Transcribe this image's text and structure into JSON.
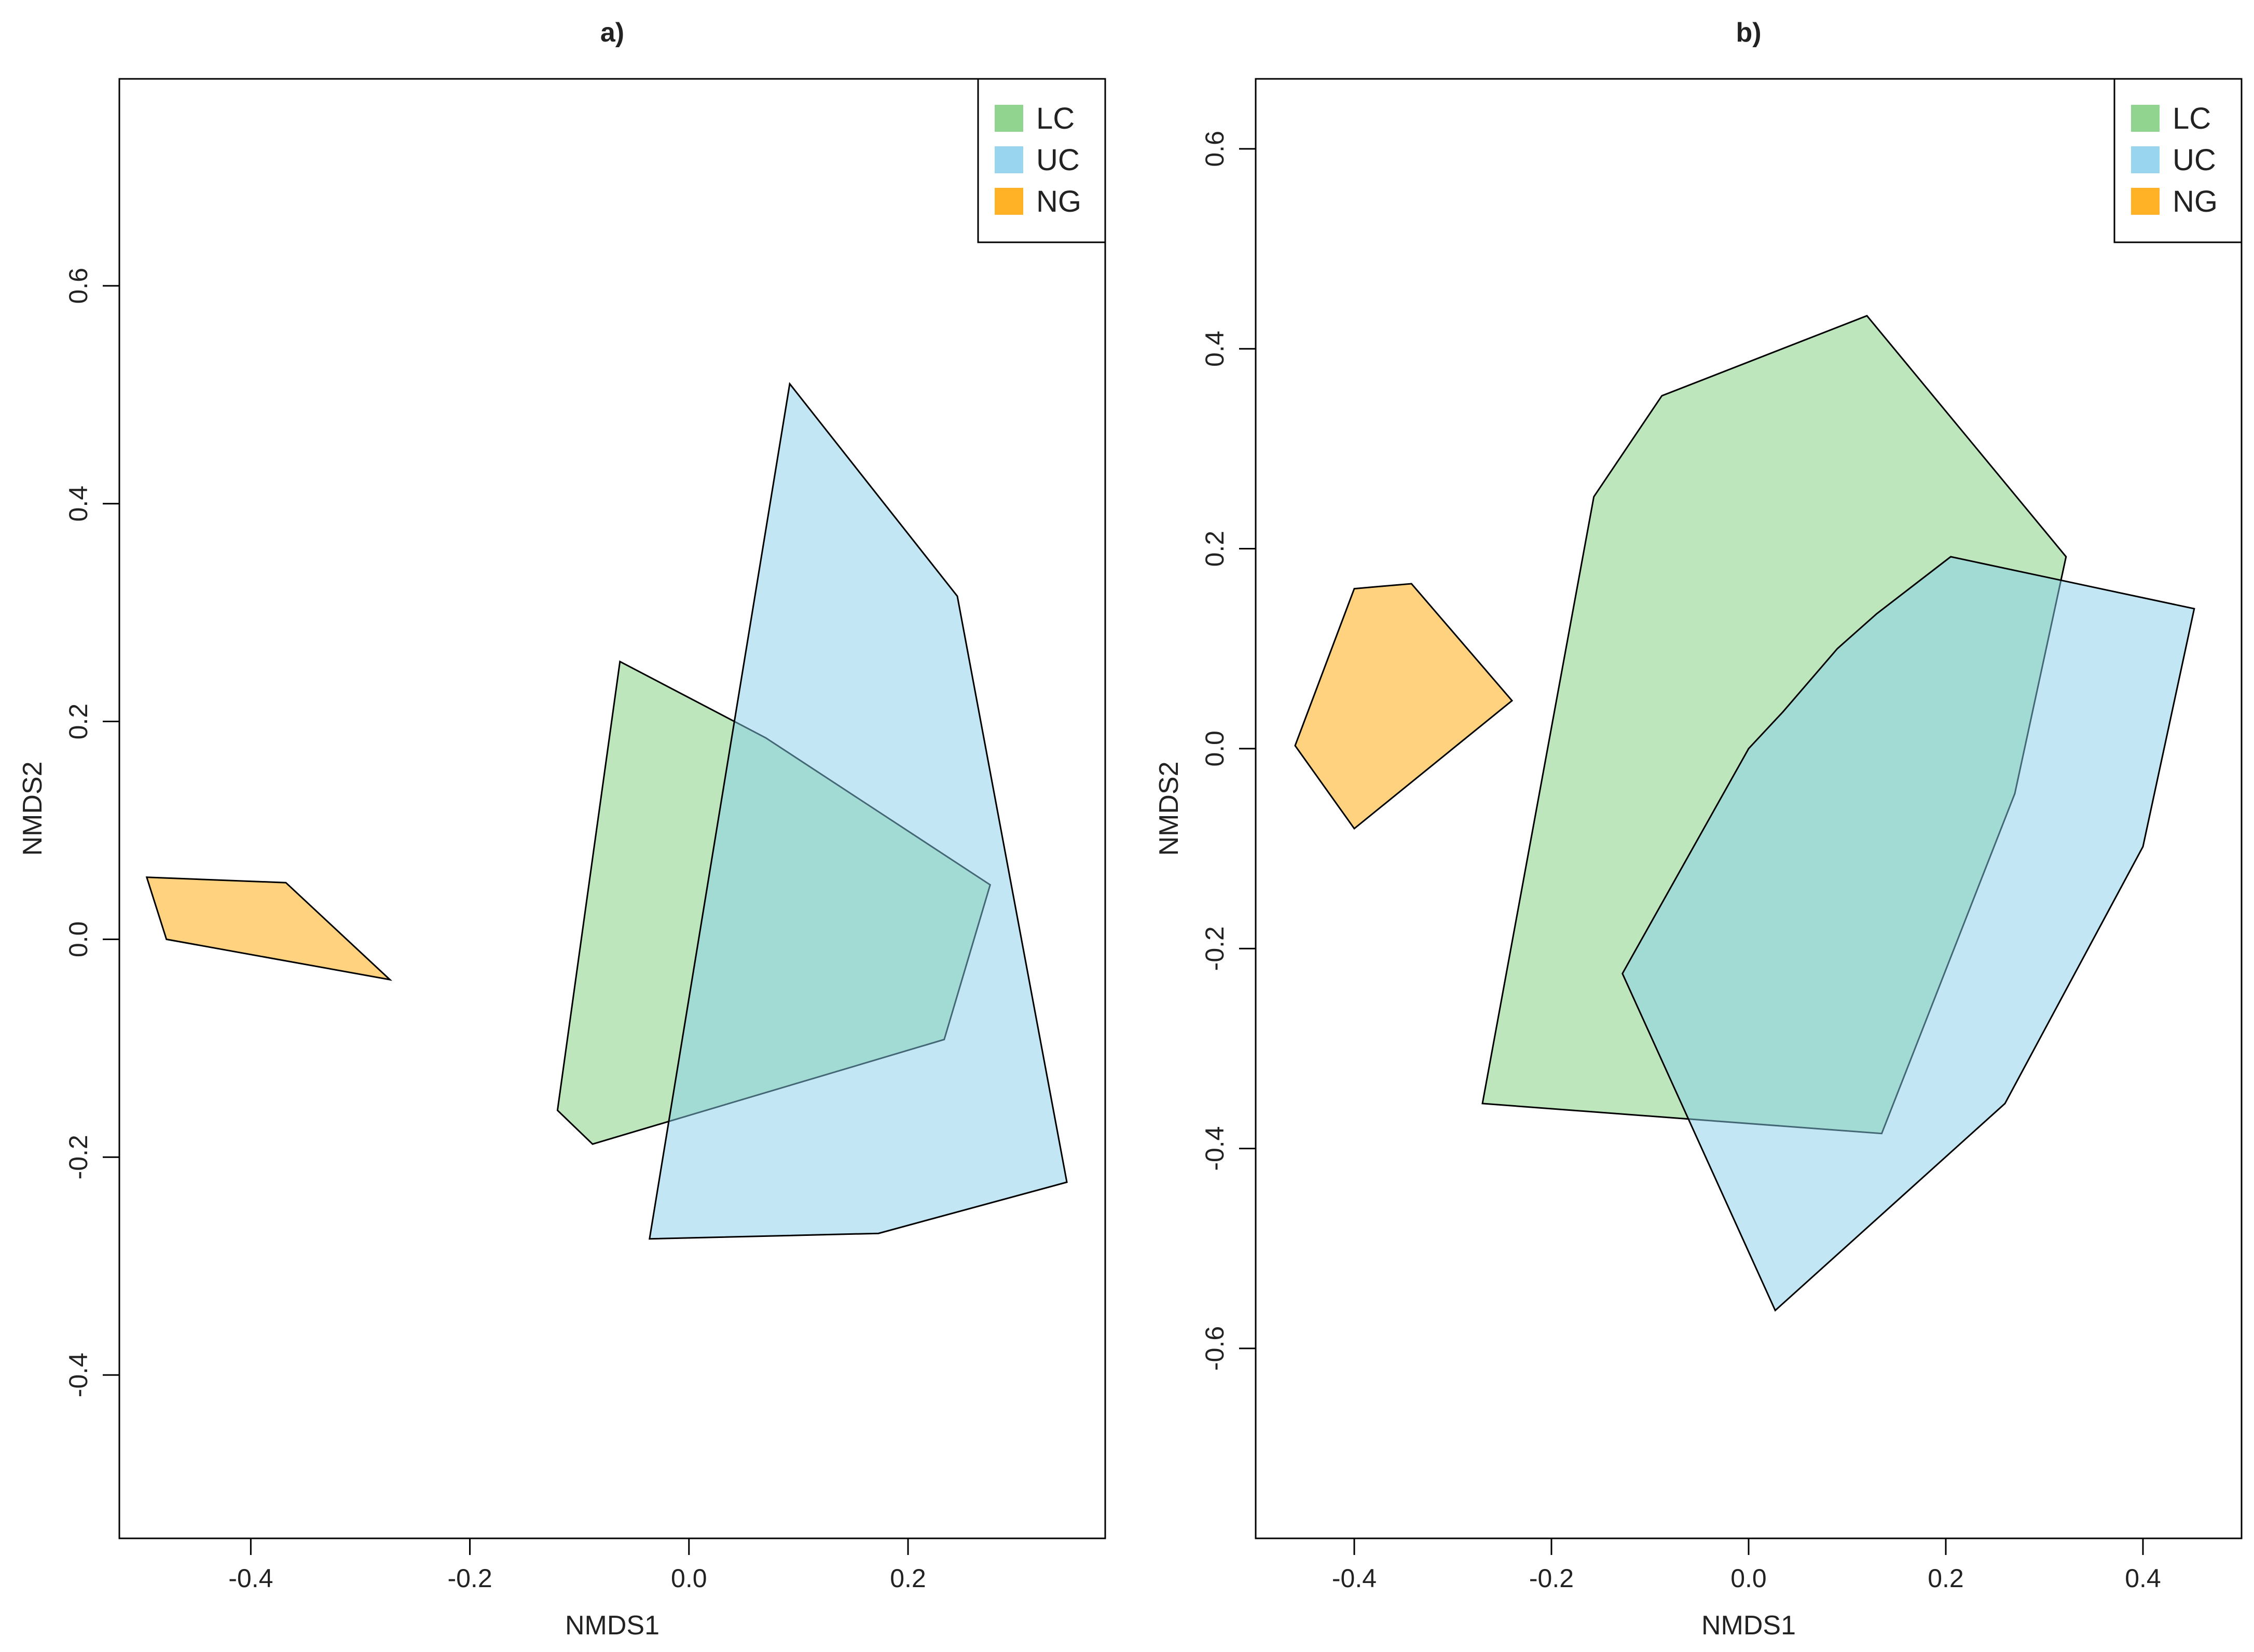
{
  "chart_data": [
    {
      "type": "scatter",
      "subtype": "convex-hull polygons",
      "title": "a)",
      "xlabel": "NMDS1",
      "ylabel": "NMDS2",
      "xlim": [
        -0.52,
        0.38
      ],
      "ylim": [
        -0.55,
        0.79
      ],
      "xticks": [
        -0.4,
        -0.2,
        0.0,
        0.2
      ],
      "xtick_labels": [
        "-0.4",
        "-0.2",
        "0.0",
        "0.2"
      ],
      "yticks": [
        -0.4,
        -0.2,
        0.0,
        0.2,
        0.4,
        0.6
      ],
      "ytick_labels": [
        "-0.4",
        "-0.2",
        "0.0",
        "0.2",
        "0.4",
        "0.6"
      ],
      "grid": false,
      "legend_position": "top-right",
      "series": [
        {
          "name": "LC",
          "color": "#7ccd7c",
          "points": [
            [
              -0.063,
              0.255
            ],
            [
              0.07,
              0.185
            ],
            [
              0.275,
              0.05
            ],
            [
              0.233,
              -0.092
            ],
            [
              -0.088,
              -0.188
            ],
            [
              -0.12,
              -0.157
            ]
          ]
        },
        {
          "name": "UC",
          "color": "#87ceeb",
          "points": [
            [
              0.092,
              0.51
            ],
            [
              0.245,
              0.315
            ],
            [
              0.345,
              -0.223
            ],
            [
              0.173,
              -0.27
            ],
            [
              -0.036,
              -0.275
            ]
          ]
        },
        {
          "name": "NG",
          "color": "#ffa500",
          "points": [
            [
              -0.495,
              0.057
            ],
            [
              -0.368,
              0.052
            ],
            [
              -0.273,
              -0.037
            ],
            [
              -0.477,
              0.0
            ]
          ]
        }
      ]
    },
    {
      "type": "scatter",
      "subtype": "convex-hull polygons",
      "title": "b)",
      "xlabel": "NMDS1",
      "ylabel": "NMDS2",
      "xlim": [
        -0.5,
        0.5
      ],
      "ylim": [
        -0.79,
        0.67
      ],
      "xticks": [
        -0.4,
        -0.2,
        0.0,
        0.2,
        0.4
      ],
      "xtick_labels": [
        "-0.4",
        "-0.2",
        "0.0",
        "0.2",
        "0.4"
      ],
      "yticks": [
        -0.6,
        -0.4,
        -0.2,
        0.0,
        0.2,
        0.4,
        0.6
      ],
      "ytick_labels": [
        "-0.6",
        "-0.4",
        "-0.2",
        "0.0",
        "0.2",
        "0.4",
        "0.6"
      ],
      "grid": false,
      "legend_position": "top-right",
      "series": [
        {
          "name": "LC",
          "color": "#7ccd7c",
          "points": [
            [
              -0.088,
              0.353
            ],
            [
              0.12,
              0.433
            ],
            [
              0.322,
              0.192
            ],
            [
              0.27,
              -0.045
            ],
            [
              0.135,
              -0.385
            ],
            [
              -0.27,
              -0.355
            ],
            [
              -0.157,
              0.252
            ]
          ]
        },
        {
          "name": "UC",
          "color": "#87ceeb",
          "points": [
            [
              0.205,
              0.192
            ],
            [
              0.452,
              0.14
            ],
            [
              0.4,
              -0.098
            ],
            [
              0.26,
              -0.355
            ],
            [
              0.027,
              -0.562
            ],
            [
              -0.128,
              -0.225
            ],
            [
              0.0,
              0.0
            ],
            [
              0.035,
              0.037
            ],
            [
              0.09,
              0.1
            ],
            [
              0.13,
              0.135
            ]
          ]
        },
        {
          "name": "NG",
          "color": "#ffa500",
          "points": [
            [
              -0.4,
              0.16
            ],
            [
              -0.342,
              0.165
            ],
            [
              -0.24,
              0.048
            ],
            [
              -0.4,
              -0.08
            ],
            [
              -0.46,
              0.003
            ]
          ]
        }
      ]
    }
  ]
}
